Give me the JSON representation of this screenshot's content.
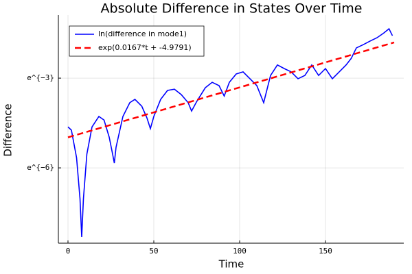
{
  "chart_data": {
    "type": "line",
    "title": "Absolute Difference in States Over Time",
    "xlabel": "Time",
    "ylabel": "Difference",
    "xlim": [
      -5.6,
      195.6
    ],
    "xticks": [
      0,
      50,
      100,
      150
    ],
    "ylim": [
      0.0002,
      0.41
    ],
    "log_y": true,
    "yticks": [
      {
        "value": 0.049787,
        "label": "e^{−3}"
      },
      {
        "value": 0.0024788,
        "label": "e^{−6}"
      }
    ],
    "grid": true,
    "legend": "top-left",
    "series": [
      {
        "name": "ln(difference in mode1)",
        "color": "#0000ff",
        "dash": false,
        "x": [
          0,
          2,
          5,
          7,
          8,
          9,
          11,
          14,
          18,
          21,
          24,
          26,
          27,
          28,
          32,
          36,
          39,
          43,
          46,
          48,
          50,
          54,
          58,
          62,
          66,
          70,
          72,
          75,
          80,
          84,
          88,
          91,
          94,
          98,
          102,
          106,
          110,
          114,
          118,
          122,
          126,
          130,
          134,
          138,
          142,
          146,
          150,
          154,
          158,
          162,
          165,
          168,
          172,
          176,
          180,
          184,
          187,
          189
        ],
        "values": [
          0.009755,
          0.00874,
          0.003483,
          0.000885,
          0.000246,
          0.000885,
          0.003926,
          0.009755,
          0.01384,
          0.01228,
          0.006943,
          0.003926,
          0.002909,
          0.004942,
          0.01384,
          0.02193,
          0.02448,
          0.01945,
          0.01317,
          0.009187,
          0.01384,
          0.02448,
          0.03304,
          0.03439,
          0.02872,
          0.02193,
          0.01657,
          0.02282,
          0.03615,
          0.04329,
          0.03877,
          0.02732,
          0.04329,
          0.05727,
          0.06142,
          0.0488,
          0.03877,
          0.02193,
          0.05448,
          0.07731,
          0.06856,
          0.06142,
          0.0488,
          0.05448,
          0.07731,
          0.05448,
          0.06856,
          0.0488,
          0.06142,
          0.07731,
          0.09633,
          0.1367,
          0.1526,
          0.172,
          0.1921,
          0.2254,
          0.2592,
          0.206
        ]
      },
      {
        "name": "exp(0.0167*t + -4.9791)",
        "color": "#ff0000",
        "dash": true,
        "x": [
          0,
          190
        ],
        "values": [
          0.00688,
          0.16429
        ]
      }
    ]
  }
}
